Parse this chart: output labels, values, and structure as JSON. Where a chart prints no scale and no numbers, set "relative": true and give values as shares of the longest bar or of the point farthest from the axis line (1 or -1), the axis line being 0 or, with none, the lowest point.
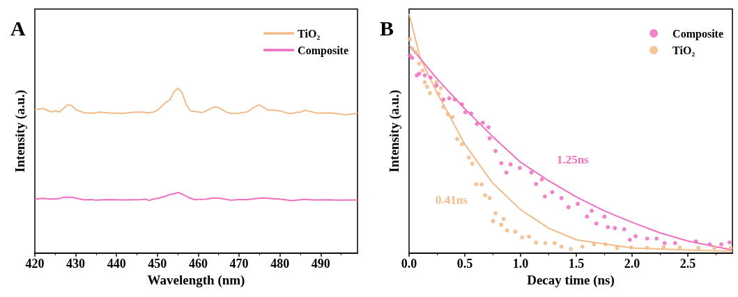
{
  "chart_data": [
    {
      "type": "line",
      "title": "A",
      "xlabel": "Wavelength (nm)",
      "ylabel": "Intensity (a.u.)",
      "relative": true,
      "legend": "top right",
      "grid": false,
      "xlim": [
        420,
        499
      ],
      "xticks": [
        420,
        430,
        440,
        450,
        460,
        470,
        480,
        490
      ],
      "series": [
        {
          "name": "TiO₂",
          "color": "#f2bb8a",
          "x": [
            420,
            422,
            424,
            425,
            426,
            428,
            429,
            430,
            432,
            434,
            436,
            438,
            440,
            442,
            444,
            446,
            448,
            449,
            450,
            452,
            453,
            454,
            455,
            456,
            457,
            458,
            460,
            461,
            462,
            464,
            465,
            467,
            468,
            470,
            472,
            474,
            475,
            476,
            477,
            478,
            480,
            482,
            483,
            484,
            485,
            486,
            488,
            489,
            492,
            494,
            496,
            498,
            499
          ],
          "values": [
            0.87,
            0.877,
            0.856,
            0.863,
            0.856,
            0.899,
            0.896,
            0.87,
            0.852,
            0.849,
            0.855,
            0.851,
            0.849,
            0.848,
            0.854,
            0.856,
            0.851,
            0.855,
            0.866,
            0.913,
            0.927,
            0.976,
            1,
            0.976,
            0.906,
            0.863,
            0.856,
            0.852,
            0.863,
            0.887,
            0.882,
            0.854,
            0.848,
            0.849,
            0.856,
            0.889,
            0.899,
            0.885,
            0.868,
            0.869,
            0.862,
            0.848,
            0.846,
            0.854,
            0.855,
            0.866,
            0.856,
            0.849,
            0.851,
            0.846,
            0.839,
            0.844,
            0.849
          ]
        },
        {
          "name": "Composite",
          "color": "#ee6fc0",
          "x": [
            420,
            422,
            424,
            426,
            427,
            429,
            430,
            432,
            434,
            435,
            438,
            442,
            446,
            447,
            448,
            449,
            450,
            452,
            453,
            454,
            455,
            456,
            458,
            459,
            462,
            464,
            465,
            468,
            470,
            472,
            474,
            476,
            478,
            480,
            483,
            486,
            488,
            492,
            494,
            499
          ],
          "values": [
            0.328,
            0.332,
            0.328,
            0.331,
            0.338,
            0.339,
            0.334,
            0.324,
            0.325,
            0.321,
            0.325,
            0.323,
            0.325,
            0.328,
            0.32,
            0.328,
            0.332,
            0.345,
            0.356,
            0.359,
            0.368,
            0.359,
            0.334,
            0.325,
            0.328,
            0.335,
            0.334,
            0.321,
            0.325,
            0.325,
            0.331,
            0.335,
            0.331,
            0.328,
            0.318,
            0.327,
            0.323,
            0.324,
            0.321,
            0.323
          ]
        }
      ]
    },
    {
      "type": "scatter",
      "title": "B",
      "xlabel": "Decay time (ns)",
      "ylabel": "Intensity (a.u.)",
      "relative": true,
      "legend": "top right",
      "grid": false,
      "xlim": [
        0,
        2.9
      ],
      "xticks": [
        {
          "value": 0,
          "label": "0.0"
        },
        {
          "value": 0.5,
          "label": "0.5"
        },
        {
          "value": 1,
          "label": "1.0"
        },
        {
          "value": 1.5,
          "label": "1.5"
        },
        {
          "value": 2,
          "label": "2.0"
        },
        {
          "value": 2.5,
          "label": "2.5"
        }
      ],
      "annotations": [
        "1.25ns",
        "0.41ns"
      ],
      "series": [
        {
          "name": "Composite",
          "color": "#ee6fc0",
          "marker": "circle",
          "x": [
            0.006,
            0.027,
            0.069,
            0.09,
            0.141,
            0.193,
            0.245,
            0.308,
            0.36,
            0.411,
            0.474,
            0.505,
            0.557,
            0.609,
            0.661,
            0.713,
            0.723,
            0.775,
            0.827,
            0.873,
            0.91,
            0.993,
            1.097,
            1.139,
            1.191,
            1.218,
            1.284,
            1.367,
            1.43,
            1.513,
            1.596,
            1.638,
            1.679,
            1.752,
            1.783,
            1.846,
            1.929,
            1.98,
            2.032,
            2.136,
            2.22,
            2.292,
            2.386,
            2.573,
            2.697,
            2.801,
            2.874
          ],
          "values": [
            0.826,
            0.816,
            0.743,
            0.75,
            0.743,
            0.734,
            0.7,
            0.642,
            0.647,
            0.642,
            0.622,
            0.589,
            0.584,
            0.54,
            0.545,
            0.526,
            0.48,
            0.427,
            0.376,
            0.337,
            0.371,
            0.356,
            0.337,
            0.289,
            0.308,
            0.237,
            0.255,
            0.23,
            0.192,
            0.206,
            0.153,
            0.177,
            0.124,
            0.153,
            0.109,
            0.105,
            0.1,
            0.056,
            0.071,
            0.061,
            0.061,
            0.042,
            0.042,
            0.049,
            0.037,
            0.037,
            0.045
          ]
        },
        {
          "name": "TiO₂",
          "color": "#f2bb8a",
          "marker": "circle",
          "x": [
            0.006,
            0.027,
            0.058,
            0.089,
            0.121,
            0.141,
            0.162,
            0.187,
            0.245,
            0.266,
            0.287,
            0.308,
            0.349,
            0.39,
            0.432,
            0.474,
            0.536,
            0.567,
            0.603,
            0.651,
            0.682,
            0.723,
            0.754,
            0.775,
            0.827,
            0.848,
            0.879,
            0.952,
            1.014,
            1.076,
            1.139,
            1.222,
            1.305,
            1.367,
            1.451,
            1.554,
            1.658,
            1.762,
            1.866,
            1.991,
            2.136,
            2.282,
            2.427,
            2.594,
            2.739,
            2.884
          ],
          "values": [
            0.894,
            0.855,
            0.84,
            0.792,
            0.763,
            0.714,
            0.695,
            0.669,
            0.714,
            0.666,
            0.69,
            0.611,
            0.581,
            0.569,
            0.477,
            0.455,
            0.4,
            0.374,
            0.288,
            0.287,
            0.242,
            0.23,
            0.134,
            0.167,
            0.119,
            0.143,
            0.095,
            0.09,
            0.066,
            0.069,
            0.044,
            0.042,
            0.042,
            0.027,
            0.017,
            0.027,
            0.037,
            0.037,
            0.022,
            0.024,
            0.022,
            0.024,
            0.024,
            0.022,
            0.022,
            0.022
          ]
        },
        {
          "type": "line",
          "color": "#ee6fc0",
          "x": [
            0,
            0.25,
            0.5,
            0.75,
            1,
            1.25,
            1.5,
            1.75,
            2,
            2.25,
            2.5,
            2.9
          ],
          "values": [
            0.869,
            0.729,
            0.603,
            0.487,
            0.38,
            0.303,
            0.235,
            0.177,
            0.129,
            0.085,
            0.051,
            0.013
          ]
        },
        {
          "type": "line",
          "color": "#f2bb8a",
          "x": [
            0,
            0.1,
            0.25,
            0.5,
            0.75,
            1,
            1.25,
            1.5,
            2,
            2.5,
            2.9
          ],
          "values": [
            1,
            0.816,
            0.671,
            0.455,
            0.293,
            0.182,
            0.105,
            0.056,
            0.022,
            0.013,
            0.008
          ]
        }
      ]
    }
  ]
}
